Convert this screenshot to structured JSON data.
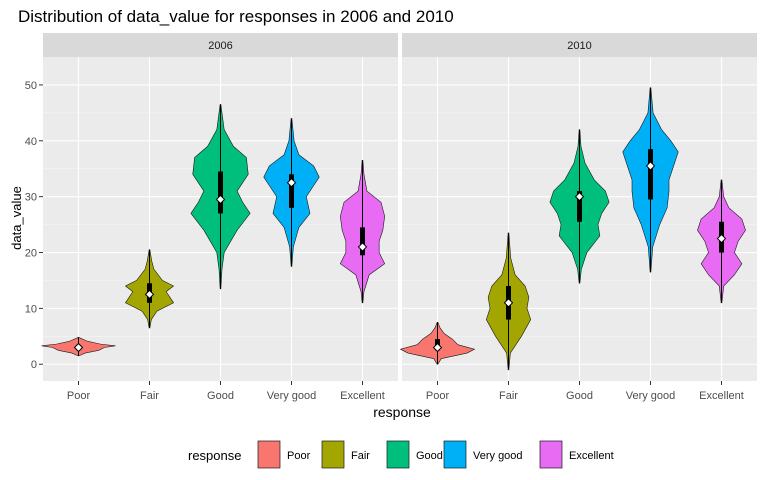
{
  "chart_data": {
    "type": "violin",
    "title": "Distribution of data_value for responses in 2006 and 2010",
    "xlabel": "response",
    "ylabel": "data_value",
    "ylim": [
      -3,
      55
    ],
    "yticks": [
      0,
      10,
      20,
      30,
      40,
      50
    ],
    "categories": [
      "Poor",
      "Fair",
      "Good",
      "Very good",
      "Excellent"
    ],
    "colors": {
      "Poor": "#F8766D",
      "Fair": "#A3A500",
      "Good": "#00BF7D",
      "Very good": "#00B0F6",
      "Excellent": "#E76BF3"
    },
    "legend": {
      "title": "response",
      "position": "bottom",
      "entries": [
        "Poor",
        "Fair",
        "Good",
        "Very good",
        "Excellent"
      ]
    },
    "panels": [
      {
        "label": "2006",
        "violins": [
          {
            "category": "Poor",
            "min": 1.5,
            "max": 4.8,
            "q1": 2.6,
            "median": 3.0,
            "q3": 3.3,
            "profile": [
              [
                1.5,
                0.01
              ],
              [
                2.0,
                0.18
              ],
              [
                2.5,
                0.55
              ],
              [
                3.0,
                0.7
              ],
              [
                3.3,
                1.0
              ],
              [
                3.6,
                0.6
              ],
              [
                4.1,
                0.25
              ],
              [
                4.8,
                0.01
              ]
            ]
          },
          {
            "category": "Fair",
            "min": 6.5,
            "max": 20.5,
            "q1": 11.0,
            "median": 12.5,
            "q3": 14.5,
            "profile": [
              [
                6.5,
                0.01
              ],
              [
                8,
                0.05
              ],
              [
                9.5,
                0.2
              ],
              [
                11,
                0.65
              ],
              [
                12,
                0.55
              ],
              [
                13,
                0.45
              ],
              [
                14,
                0.65
              ],
              [
                15,
                0.35
              ],
              [
                17,
                0.12
              ],
              [
                18.5,
                0.06
              ],
              [
                20.5,
                0.01
              ]
            ]
          },
          {
            "category": "Good",
            "min": 13.5,
            "max": 46.5,
            "q1": 27.0,
            "median": 29.5,
            "q3": 34.5,
            "profile": [
              [
                13.5,
                0.01
              ],
              [
                17,
                0.04
              ],
              [
                20,
                0.1
              ],
              [
                24,
                0.45
              ],
              [
                27,
                0.8
              ],
              [
                29,
                0.6
              ],
              [
                31,
                0.45
              ],
              [
                34,
                0.75
              ],
              [
                37,
                0.7
              ],
              [
                39,
                0.35
              ],
              [
                42,
                0.1
              ],
              [
                46.5,
                0.01
              ]
            ]
          },
          {
            "category": "Very good",
            "min": 17.5,
            "max": 44.0,
            "q1": 28.0,
            "median": 32.5,
            "q3": 34.0,
            "profile": [
              [
                17.5,
                0.01
              ],
              [
                21,
                0.05
              ],
              [
                24.5,
                0.2
              ],
              [
                27,
                0.5
              ],
              [
                28.5,
                0.45
              ],
              [
                30,
                0.4
              ],
              [
                32,
                0.6
              ],
              [
                33.5,
                0.75
              ],
              [
                35.5,
                0.6
              ],
              [
                37.5,
                0.2
              ],
              [
                40,
                0.07
              ],
              [
                44,
                0.01
              ]
            ]
          },
          {
            "category": "Excellent",
            "min": 11.0,
            "max": 36.5,
            "q1": 19.5,
            "median": 21.0,
            "q3": 24.5,
            "profile": [
              [
                11,
                0.01
              ],
              [
                13,
                0.04
              ],
              [
                16,
                0.18
              ],
              [
                18,
                0.6
              ],
              [
                20,
                0.45
              ],
              [
                22,
                0.45
              ],
              [
                24,
                0.55
              ],
              [
                26.5,
                0.6
              ],
              [
                29,
                0.5
              ],
              [
                31,
                0.12
              ],
              [
                34,
                0.04
              ],
              [
                36.5,
                0.01
              ]
            ]
          }
        ]
      },
      {
        "label": "2010",
        "violins": [
          {
            "category": "Poor",
            "min": 0.0,
            "max": 7.5,
            "q1": 2.5,
            "median": 3.0,
            "q3": 4.5,
            "profile": [
              [
                0,
                0.01
              ],
              [
                1,
                0.1
              ],
              [
                2,
                0.8
              ],
              [
                2.7,
                1.0
              ],
              [
                3.5,
                0.55
              ],
              [
                4.5,
                0.4
              ],
              [
                5.5,
                0.18
              ],
              [
                6.5,
                0.07
              ],
              [
                7.5,
                0.01
              ]
            ]
          },
          {
            "category": "Fair",
            "min": -1.0,
            "max": 23.5,
            "q1": 8.0,
            "median": 11.0,
            "q3": 14.0,
            "profile": [
              [
                -1,
                0.01
              ],
              [
                2,
                0.05
              ],
              [
                5,
                0.35
              ],
              [
                8,
                0.6
              ],
              [
                10,
                0.5
              ],
              [
                12,
                0.55
              ],
              [
                14,
                0.45
              ],
              [
                16,
                0.18
              ],
              [
                19,
                0.06
              ],
              [
                23.5,
                0.01
              ]
            ]
          },
          {
            "category": "Good",
            "min": 14.5,
            "max": 42.0,
            "q1": 25.5,
            "median": 30.0,
            "q3": 31.0,
            "profile": [
              [
                14.5,
                0.01
              ],
              [
                17,
                0.05
              ],
              [
                20,
                0.2
              ],
              [
                23,
                0.55
              ],
              [
                25,
                0.5
              ],
              [
                27,
                0.6
              ],
              [
                29,
                0.8
              ],
              [
                31,
                0.7
              ],
              [
                33,
                0.4
              ],
              [
                36,
                0.15
              ],
              [
                39,
                0.04
              ],
              [
                42,
                0.01
              ]
            ]
          },
          {
            "category": "Very good",
            "min": 16.5,
            "max": 49.5,
            "q1": 29.5,
            "median": 35.5,
            "q3": 38.5,
            "profile": [
              [
                16.5,
                0.01
              ],
              [
                21,
                0.06
              ],
              [
                25,
                0.25
              ],
              [
                28,
                0.45
              ],
              [
                31,
                0.5
              ],
              [
                33,
                0.5
              ],
              [
                36,
                0.65
              ],
              [
                38,
                0.75
              ],
              [
                40,
                0.55
              ],
              [
                42,
                0.3
              ],
              [
                45,
                0.07
              ],
              [
                49.5,
                0.01
              ]
            ]
          },
          {
            "category": "Excellent",
            "min": 11.0,
            "max": 33.0,
            "q1": 20.0,
            "median": 22.5,
            "q3": 25.5,
            "profile": [
              [
                11,
                0.01
              ],
              [
                14,
                0.06
              ],
              [
                16,
                0.35
              ],
              [
                18,
                0.55
              ],
              [
                20,
                0.35
              ],
              [
                22,
                0.45
              ],
              [
                24,
                0.65
              ],
              [
                26,
                0.55
              ],
              [
                28,
                0.2
              ],
              [
                30,
                0.06
              ],
              [
                33,
                0.01
              ]
            ]
          }
        ]
      }
    ]
  }
}
